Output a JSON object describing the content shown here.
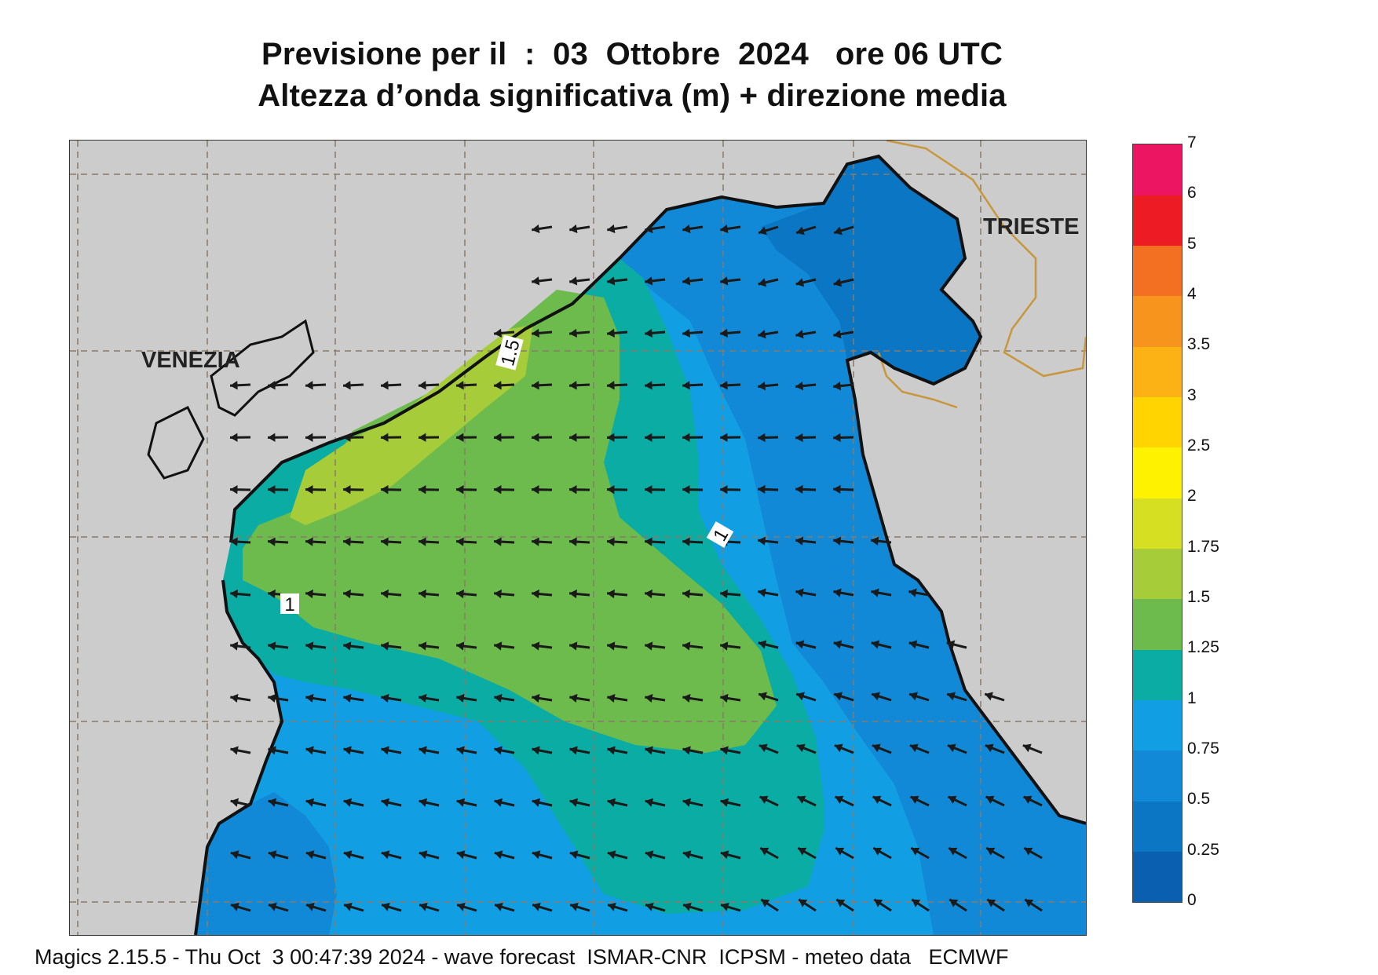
{
  "header": {
    "title": "Previsione per il  :  03  Ottobre  2024   ore 06 UTC",
    "subtitle": "Altezza d’onda significativa (m) + direzione media"
  },
  "map": {
    "cities": [
      {
        "id": "venezia",
        "label": "VENEZIA"
      },
      {
        "id": "trieste",
        "label": "TRIESTE"
      }
    ],
    "contour_labels": [
      "1.5",
      "1",
      "1"
    ],
    "land_color": "#cccccc",
    "coast_color": "#111111",
    "border_color": "#c8963c",
    "arrow_color": "#1a1a1a",
    "wave_direction": "from east / south-east, mean direction arrows pointing west"
  },
  "legend": {
    "levels": [
      "0",
      "0.25",
      "0.5",
      "0.75",
      "1",
      "1.25",
      "1.5",
      "1.75",
      "2",
      "2.5",
      "3",
      "3.5",
      "4",
      "5",
      "6",
      "7"
    ],
    "colors": [
      "#0a5fb0",
      "#0b76c4",
      "#1189d6",
      "#129ee3",
      "#0aaca4",
      "#6cbb4c",
      "#a6cc3a",
      "#d7df22",
      "#fff200",
      "#ffd400",
      "#fcb215",
      "#f7941d",
      "#f37022",
      "#ed1c24",
      "#ec1561"
    ]
  },
  "footer": {
    "text": "Magics 2.15.5 - Thu Oct  3 00:47:39 2024 - wave forecast  ISMAR-CNR  ICPSM - meteo data   ECMWF"
  }
}
